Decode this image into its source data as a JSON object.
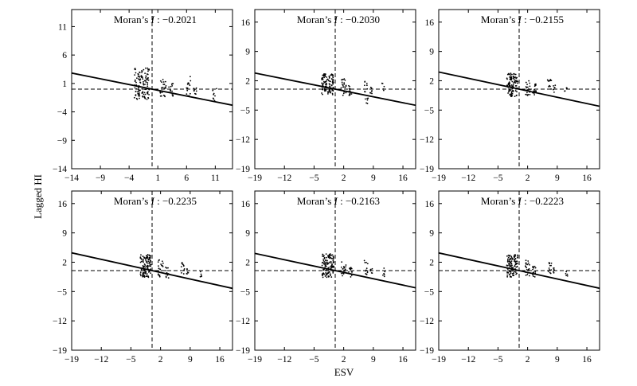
{
  "figure": {
    "ylabel": "Lagged HI",
    "xlabel": "ESV"
  },
  "chart_data": [
    {
      "type": "scatter",
      "title_prefix": "Moran’s ",
      "title_italic": "I",
      "title_value": " : −0.2021",
      "xlim": [
        -14,
        14
      ],
      "ylim": [
        -14,
        14
      ],
      "xticks": [
        -14,
        -9,
        -4,
        1,
        6,
        11
      ],
      "yticks": [
        -14,
        -9,
        -4,
        1,
        6,
        11
      ],
      "xtick_labels": [
        "−14",
        "−9",
        "−4",
        "1",
        "6",
        "11"
      ],
      "ytick_labels": [
        "−14",
        "−9",
        "−4",
        "1",
        "6",
        "11"
      ],
      "slope": -0.2021,
      "intercept": 0,
      "hline": 0,
      "vline": 0,
      "clusters": [
        {
          "x": -1.8,
          "xspan": 2.6,
          "ymin": -1.8,
          "ymax": 3.8,
          "n": 130
        },
        {
          "x": 2.0,
          "xspan": 1.2,
          "ymin": -1.4,
          "ymax": 2.4,
          "n": 22
        },
        {
          "x": 3.3,
          "xspan": 0.8,
          "ymin": -1.3,
          "ymax": 1.0,
          "n": 14
        },
        {
          "x": 6.3,
          "xspan": 0.9,
          "ymin": -1.4,
          "ymax": 2.3,
          "n": 14
        },
        {
          "x": 7.5,
          "xspan": 0.5,
          "ymin": -1.3,
          "ymax": 0.4,
          "n": 8
        },
        {
          "x": 10.9,
          "xspan": 0.7,
          "ymin": -2.5,
          "ymax": 0.5,
          "n": 8
        }
      ]
    },
    {
      "type": "scatter",
      "title_prefix": "Moran’s ",
      "title_italic": "I",
      "title_value": " : −0.2030",
      "xlim": [
        -19,
        19
      ],
      "ylim": [
        -19,
        19
      ],
      "xticks": [
        -19,
        -12,
        -5,
        2,
        9,
        16
      ],
      "yticks": [
        -19,
        -12,
        -5,
        2,
        9,
        16
      ],
      "xtick_labels": [
        "−19",
        "−12",
        "−5",
        "2",
        "9",
        "16"
      ],
      "ytick_labels": [
        "−19",
        "−12",
        "−5",
        "2",
        "9",
        "16"
      ],
      "slope": -0.203,
      "intercept": 0,
      "hline": 0,
      "vline": 0,
      "clusters": [
        {
          "x": -1.8,
          "xspan": 2.8,
          "ymin": -1.5,
          "ymax": 3.8,
          "n": 110
        },
        {
          "x": 2.0,
          "xspan": 1.2,
          "ymin": -1.5,
          "ymax": 2.6,
          "n": 22
        },
        {
          "x": 3.5,
          "xspan": 0.8,
          "ymin": -1.5,
          "ymax": 1.2,
          "n": 14
        },
        {
          "x": 7.3,
          "xspan": 1.0,
          "ymin": -3.5,
          "ymax": 2.6,
          "n": 14
        },
        {
          "x": 8.5,
          "xspan": 0.5,
          "ymin": -1.2,
          "ymax": 0.8,
          "n": 8
        },
        {
          "x": 11.3,
          "xspan": 0.6,
          "ymin": -0.4,
          "ymax": 1.6,
          "n": 5
        }
      ]
    },
    {
      "type": "scatter",
      "title_prefix": "Moran’s ",
      "title_italic": "I",
      "title_value": " : −0.2155",
      "xlim": [
        -19,
        19
      ],
      "ylim": [
        -19,
        19
      ],
      "xticks": [
        -19,
        -12,
        -5,
        2,
        9,
        16
      ],
      "yticks": [
        -19,
        -12,
        -5,
        2,
        9,
        16
      ],
      "xtick_labels": [
        "−19",
        "−12",
        "−5",
        "2",
        "9",
        "16"
      ],
      "ytick_labels": [
        "−19",
        "−12",
        "−5",
        "2",
        "9",
        "16"
      ],
      "slope": -0.2155,
      "intercept": 0,
      "hline": 0,
      "vline": 0,
      "clusters": [
        {
          "x": -1.6,
          "xspan": 2.6,
          "ymin": -1.8,
          "ymax": 3.8,
          "n": 110
        },
        {
          "x": 2.0,
          "xspan": 1.2,
          "ymin": -1.5,
          "ymax": 2.5,
          "n": 22
        },
        {
          "x": 3.6,
          "xspan": 0.8,
          "ymin": -1.4,
          "ymax": 1.2,
          "n": 14
        },
        {
          "x": 7.2,
          "xspan": 1.0,
          "ymin": -1.0,
          "ymax": 2.3,
          "n": 12
        },
        {
          "x": 8.3,
          "xspan": 0.5,
          "ymin": -0.8,
          "ymax": 1.0,
          "n": 6
        },
        {
          "x": 11.0,
          "xspan": 0.6,
          "ymin": -2.0,
          "ymax": 0.5,
          "n": 5
        }
      ]
    },
    {
      "type": "scatter",
      "title_prefix": "Moran’s ",
      "title_italic": "I",
      "title_value": " : −0.2235",
      "xlim": [
        -19,
        19
      ],
      "ylim": [
        -19,
        19
      ],
      "xticks": [
        -19,
        -12,
        -5,
        2,
        9,
        16
      ],
      "yticks": [
        -19,
        -12,
        -5,
        2,
        9,
        16
      ],
      "xtick_labels": [
        "−19",
        "−12",
        "−5",
        "2",
        "9",
        "16"
      ],
      "ytick_labels": [
        "−19",
        "−12",
        "−5",
        "2",
        "9",
        "16"
      ],
      "slope": -0.2235,
      "intercept": 0,
      "hline": 0,
      "vline": 0,
      "clusters": [
        {
          "x": -1.5,
          "xspan": 2.6,
          "ymin": -1.6,
          "ymax": 3.8,
          "n": 110
        },
        {
          "x": 2.0,
          "xspan": 1.2,
          "ymin": -1.5,
          "ymax": 2.6,
          "n": 22
        },
        {
          "x": 3.6,
          "xspan": 0.8,
          "ymin": -1.8,
          "ymax": 1.0,
          "n": 14
        },
        {
          "x": 7.3,
          "xspan": 1.0,
          "ymin": -1.0,
          "ymax": 2.3,
          "n": 12
        },
        {
          "x": 8.4,
          "xspan": 0.5,
          "ymin": -1.0,
          "ymax": 0.8,
          "n": 6
        },
        {
          "x": 11.4,
          "xspan": 0.6,
          "ymin": -1.6,
          "ymax": -0.2,
          "n": 5
        }
      ]
    },
    {
      "type": "scatter",
      "title_prefix": "Moran’s ",
      "title_italic": "I",
      "title_value": " : −0.2163",
      "xlim": [
        -19,
        19
      ],
      "ylim": [
        -19,
        19
      ],
      "xticks": [
        -19,
        -12,
        -5,
        2,
        9,
        16
      ],
      "yticks": [
        -19,
        -12,
        -5,
        2,
        9,
        16
      ],
      "xtick_labels": [
        "−19",
        "−12",
        "−5",
        "2",
        "9",
        "16"
      ],
      "ytick_labels": [
        "−19",
        "−12",
        "−5",
        "2",
        "9",
        "16"
      ],
      "slope": -0.2163,
      "intercept": 0,
      "hline": 0,
      "vline": 0,
      "clusters": [
        {
          "x": -1.7,
          "xspan": 2.8,
          "ymin": -1.6,
          "ymax": 4.0,
          "n": 120
        },
        {
          "x": 2.0,
          "xspan": 1.2,
          "ymin": -1.5,
          "ymax": 2.6,
          "n": 22
        },
        {
          "x": 3.6,
          "xspan": 0.8,
          "ymin": -1.6,
          "ymax": 1.2,
          "n": 14
        },
        {
          "x": 7.3,
          "xspan": 1.0,
          "ymin": -1.0,
          "ymax": 2.4,
          "n": 12
        },
        {
          "x": 8.5,
          "xspan": 0.5,
          "ymin": -1.0,
          "ymax": 0.8,
          "n": 6
        },
        {
          "x": 11.5,
          "xspan": 0.6,
          "ymin": -1.8,
          "ymax": 0.6,
          "n": 6
        }
      ]
    },
    {
      "type": "scatter",
      "title_prefix": "Moran’s ",
      "title_italic": "I",
      "title_value": " : −0.2223",
      "xlim": [
        -19,
        19
      ],
      "ylim": [
        -19,
        19
      ],
      "xticks": [
        -19,
        -12,
        -5,
        2,
        9,
        16
      ],
      "yticks": [
        -19,
        -12,
        -5,
        2,
        9,
        16
      ],
      "xtick_labels": [
        "−19",
        "−12",
        "−5",
        "2",
        "9",
        "16"
      ],
      "ytick_labels": [
        "−19",
        "−12",
        "−5",
        "2",
        "9",
        "16"
      ],
      "slope": -0.2223,
      "intercept": 0,
      "hline": 0,
      "vline": 0,
      "clusters": [
        {
          "x": -1.6,
          "xspan": 2.6,
          "ymin": -1.6,
          "ymax": 3.8,
          "n": 110
        },
        {
          "x": 2.0,
          "xspan": 1.2,
          "ymin": -1.5,
          "ymax": 2.5,
          "n": 22
        },
        {
          "x": 3.6,
          "xspan": 0.8,
          "ymin": -1.6,
          "ymax": 1.0,
          "n": 14
        },
        {
          "x": 7.2,
          "xspan": 1.0,
          "ymin": -1.0,
          "ymax": 2.2,
          "n": 12
        },
        {
          "x": 8.3,
          "xspan": 0.5,
          "ymin": -1.0,
          "ymax": 0.8,
          "n": 6
        },
        {
          "x": 11.2,
          "xspan": 0.6,
          "ymin": -1.4,
          "ymax": 0.2,
          "n": 5
        }
      ]
    }
  ]
}
